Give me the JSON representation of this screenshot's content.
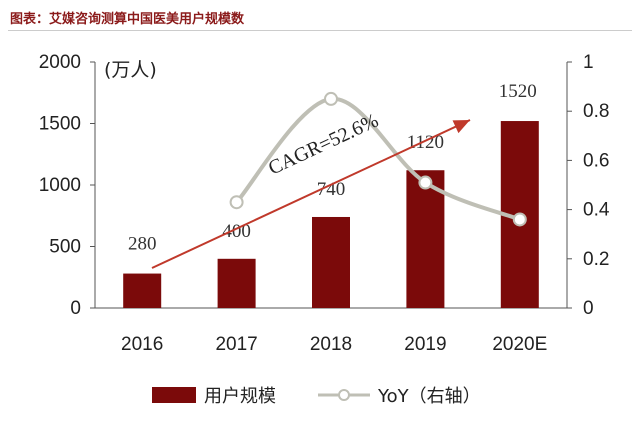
{
  "header": {
    "title": "图表：艾媒咨询测算中国医美用户规模数"
  },
  "chart_data": {
    "type": "bar",
    "categories": [
      "2016",
      "2017",
      "2018",
      "2019",
      "2020E"
    ],
    "series": [
      {
        "name": "用户规模",
        "type": "bar",
        "axis": "left",
        "color": "#7B0A0A",
        "values": [
          280,
          400,
          740,
          1120,
          1520
        ]
      },
      {
        "name": "YoY（右轴）",
        "type": "line",
        "axis": "right",
        "color": "#BFBFB5",
        "values": [
          null,
          0.43,
          0.85,
          0.51,
          0.36
        ]
      }
    ],
    "data_labels": [
      "280",
      "400",
      "740",
      "1120",
      "1520"
    ],
    "left_axis": {
      "label": "(万人)",
      "ylim": [
        0,
        2000
      ],
      "ticks": [
        "0",
        "500",
        "1000",
        "1500",
        "2000"
      ]
    },
    "right_axis": {
      "ylim": [
        0,
        1
      ],
      "ticks": [
        "0",
        "0.2",
        "0.4",
        "0.6",
        "0.8",
        "1"
      ]
    },
    "annotation": {
      "text": "CAGR=52.6%",
      "color": "#C0392B"
    },
    "grid": false,
    "legend_position": "bottom"
  }
}
